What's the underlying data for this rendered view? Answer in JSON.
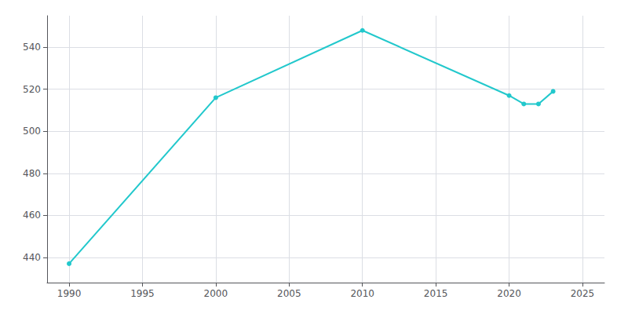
{
  "chart_data": {
    "type": "line",
    "x": [
      1990,
      2000,
      2010,
      2020,
      2021,
      2022,
      2023
    ],
    "values": [
      437,
      516,
      548,
      517,
      513,
      513,
      519
    ],
    "color": "#22C8CC",
    "marker": "circle",
    "xlim": [
      1988.5,
      2026.5
    ],
    "ylim": [
      428,
      555
    ],
    "xticks": [
      1990,
      1995,
      2000,
      2005,
      2010,
      2015,
      2020,
      2025
    ],
    "yticks": [
      440,
      460,
      480,
      500,
      520,
      540
    ],
    "grid": true
  }
}
